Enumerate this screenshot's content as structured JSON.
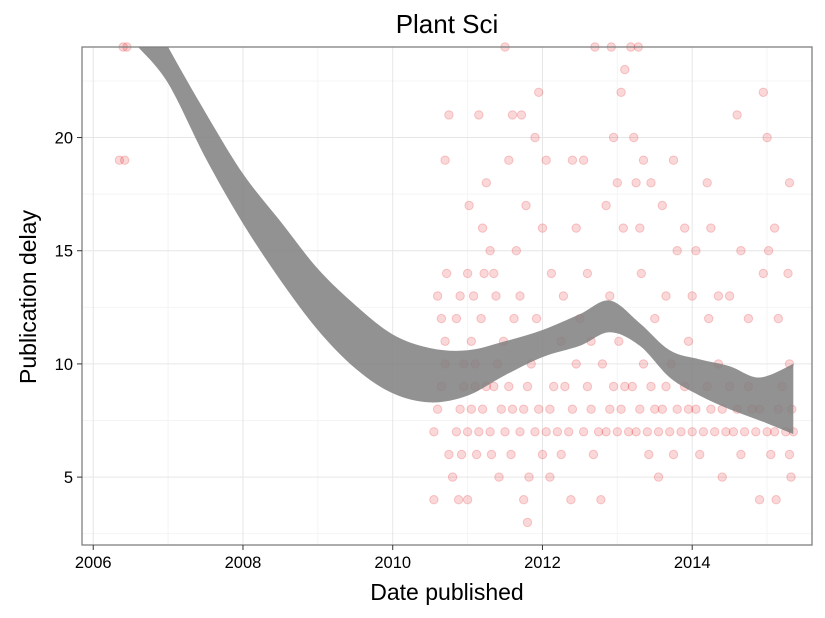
{
  "chart_data": {
    "type": "scatter",
    "title": "Plant Sci",
    "xlabel": "Date published",
    "ylabel": "Publication delay",
    "x_ticks": [
      "2006",
      "2008",
      "2010",
      "2012",
      "2014"
    ],
    "y_ticks": [
      "5",
      "10",
      "15",
      "20"
    ],
    "x_tick_values": [
      2006,
      2008,
      2010,
      2012,
      2014
    ],
    "y_tick_values": [
      5,
      10,
      15,
      20
    ],
    "xlim": [
      2005.85,
      2015.6
    ],
    "ylim": [
      2.0,
      24.0
    ],
    "grid": true,
    "point_color": "#e41a1c",
    "point_alpha": 0.17,
    "band_color": "#7f7f7f",
    "series": [
      {
        "kind": "points",
        "points": [
          [
            2006.35,
            19
          ],
          [
            2006.42,
            19
          ],
          [
            2006.4,
            24
          ],
          [
            2006.45,
            24
          ],
          [
            2010.55,
            7
          ],
          [
            2010.6,
            8
          ],
          [
            2010.65,
            9
          ],
          [
            2010.7,
            10
          ],
          [
            2010.6,
            13
          ],
          [
            2010.65,
            12
          ],
          [
            2010.7,
            11
          ],
          [
            2010.55,
            4
          ],
          [
            2010.75,
            6
          ],
          [
            2010.8,
            5
          ],
          [
            2010.7,
            19
          ],
          [
            2010.75,
            21
          ],
          [
            2010.72,
            14
          ],
          [
            2010.85,
            7
          ],
          [
            2010.9,
            8
          ],
          [
            2010.95,
            9
          ],
          [
            2010.85,
            12
          ],
          [
            2010.9,
            13
          ],
          [
            2010.95,
            10
          ],
          [
            2010.88,
            4
          ],
          [
            2010.92,
            6
          ],
          [
            2011.0,
            7
          ],
          [
            2011.05,
            8
          ],
          [
            2011.1,
            9
          ],
          [
            2011.0,
            14
          ],
          [
            2011.05,
            11
          ],
          [
            2011.1,
            10
          ],
          [
            2011.02,
            17
          ],
          [
            2011.08,
            13
          ],
          [
            2011.12,
            6
          ],
          [
            2011.0,
            4
          ],
          [
            2011.15,
            7
          ],
          [
            2011.2,
            8
          ],
          [
            2011.25,
            9
          ],
          [
            2011.15,
            21
          ],
          [
            2011.2,
            16
          ],
          [
            2011.25,
            18
          ],
          [
            2011.22,
            14
          ],
          [
            2011.18,
            12
          ],
          [
            2011.3,
            7
          ],
          [
            2011.35,
            9
          ],
          [
            2011.4,
            10
          ],
          [
            2011.3,
            15
          ],
          [
            2011.35,
            14
          ],
          [
            2011.38,
            13
          ],
          [
            2011.32,
            6
          ],
          [
            2011.42,
            5
          ],
          [
            2011.45,
            8
          ],
          [
            2011.48,
            11
          ],
          [
            2011.5,
            7
          ],
          [
            2011.55,
            9
          ],
          [
            2011.6,
            8
          ],
          [
            2011.55,
            19
          ],
          [
            2011.6,
            21
          ],
          [
            2011.65,
            15
          ],
          [
            2011.5,
            24
          ],
          [
            2011.62,
            12
          ],
          [
            2011.58,
            6
          ],
          [
            2011.7,
            7
          ],
          [
            2011.75,
            8
          ],
          [
            2011.8,
            9
          ],
          [
            2011.72,
            21
          ],
          [
            2011.78,
            17
          ],
          [
            2011.7,
            13
          ],
          [
            2011.75,
            4
          ],
          [
            2011.8,
            3
          ],
          [
            2011.82,
            5
          ],
          [
            2011.85,
            10
          ],
          [
            2011.9,
            7
          ],
          [
            2011.95,
            8
          ],
          [
            2012.0,
            6
          ],
          [
            2011.9,
            20
          ],
          [
            2011.95,
            22
          ],
          [
            2012.0,
            16
          ],
          [
            2011.92,
            12
          ],
          [
            2012.05,
            7
          ],
          [
            2012.1,
            8
          ],
          [
            2012.15,
            9
          ],
          [
            2012.05,
            19
          ],
          [
            2012.12,
            14
          ],
          [
            2012.1,
            5
          ],
          [
            2012.2,
            7
          ],
          [
            2012.25,
            6
          ],
          [
            2012.3,
            9
          ],
          [
            2012.25,
            11
          ],
          [
            2012.28,
            13
          ],
          [
            2012.35,
            7
          ],
          [
            2012.4,
            8
          ],
          [
            2012.45,
            10
          ],
          [
            2012.4,
            19
          ],
          [
            2012.45,
            16
          ],
          [
            2012.5,
            12
          ],
          [
            2012.38,
            4
          ],
          [
            2012.55,
            7
          ],
          [
            2012.6,
            9
          ],
          [
            2012.65,
            8
          ],
          [
            2012.55,
            19
          ],
          [
            2012.6,
            14
          ],
          [
            2012.65,
            11
          ],
          [
            2012.7,
            24
          ],
          [
            2012.68,
            6
          ],
          [
            2012.75,
            7
          ],
          [
            2012.8,
            10
          ],
          [
            2012.78,
            4
          ],
          [
            2012.85,
            7
          ],
          [
            2012.9,
            8
          ],
          [
            2012.95,
            9
          ],
          [
            2012.85,
            17
          ],
          [
            2012.9,
            13
          ],
          [
            2012.95,
            20
          ],
          [
            2012.92,
            24
          ],
          [
            2013.0,
            7
          ],
          [
            2013.05,
            8
          ],
          [
            2013.1,
            9
          ],
          [
            2013.0,
            18
          ],
          [
            2013.05,
            22
          ],
          [
            2013.1,
            23
          ],
          [
            2013.08,
            16
          ],
          [
            2013.02,
            11
          ],
          [
            2013.15,
            7
          ],
          [
            2013.2,
            9
          ],
          [
            2013.18,
            24
          ],
          [
            2013.22,
            20
          ],
          [
            2013.25,
            7
          ],
          [
            2013.3,
            8
          ],
          [
            2013.35,
            10
          ],
          [
            2013.25,
            18
          ],
          [
            2013.3,
            16
          ],
          [
            2013.35,
            19
          ],
          [
            2013.32,
            14
          ],
          [
            2013.28,
            24
          ],
          [
            2013.4,
            7
          ],
          [
            2013.45,
            9
          ],
          [
            2013.5,
            8
          ],
          [
            2013.45,
            18
          ],
          [
            2013.5,
            12
          ],
          [
            2013.42,
            6
          ],
          [
            2013.55,
            7
          ],
          [
            2013.6,
            8
          ],
          [
            2013.65,
            9
          ],
          [
            2013.6,
            17
          ],
          [
            2013.65,
            13
          ],
          [
            2013.55,
            5
          ],
          [
            2013.7,
            7
          ],
          [
            2013.75,
            6
          ],
          [
            2013.8,
            8
          ],
          [
            2013.75,
            19
          ],
          [
            2013.8,
            15
          ],
          [
            2013.72,
            10
          ],
          [
            2013.85,
            7
          ],
          [
            2013.9,
            9
          ],
          [
            2013.95,
            8
          ],
          [
            2013.9,
            16
          ],
          [
            2013.95,
            11
          ],
          [
            2014.0,
            7
          ],
          [
            2014.05,
            8
          ],
          [
            2014.1,
            6
          ],
          [
            2014.05,
            15
          ],
          [
            2014.0,
            13
          ],
          [
            2014.15,
            7
          ],
          [
            2014.2,
            9
          ],
          [
            2014.25,
            8
          ],
          [
            2014.2,
            18
          ],
          [
            2014.25,
            16
          ],
          [
            2014.22,
            12
          ],
          [
            2014.3,
            7
          ],
          [
            2014.35,
            10
          ],
          [
            2014.4,
            8
          ],
          [
            2014.35,
            13
          ],
          [
            2014.4,
            5
          ],
          [
            2014.45,
            7
          ],
          [
            2014.5,
            9
          ],
          [
            2014.5,
            13
          ],
          [
            2014.55,
            7
          ],
          [
            2014.6,
            8
          ],
          [
            2014.65,
            6
          ],
          [
            2014.6,
            21
          ],
          [
            2014.65,
            15
          ],
          [
            2014.7,
            7
          ],
          [
            2014.75,
            9
          ],
          [
            2014.8,
            8
          ],
          [
            2014.75,
            12
          ],
          [
            2014.85,
            7
          ],
          [
            2014.9,
            8
          ],
          [
            2014.95,
            14
          ],
          [
            2014.9,
            4
          ],
          [
            2014.95,
            22
          ],
          [
            2015.0,
            7
          ],
          [
            2015.0,
            20
          ],
          [
            2015.05,
            6
          ],
          [
            2015.02,
            15
          ],
          [
            2015.1,
            7
          ],
          [
            2015.15,
            8
          ],
          [
            2015.2,
            9
          ],
          [
            2015.1,
            16
          ],
          [
            2015.15,
            12
          ],
          [
            2015.12,
            4
          ],
          [
            2015.25,
            7
          ],
          [
            2015.3,
            10
          ],
          [
            2015.3,
            18
          ],
          [
            2015.28,
            14
          ],
          [
            2015.32,
            5
          ],
          [
            2015.35,
            7
          ],
          [
            2015.3,
            6
          ],
          [
            2015.33,
            8
          ]
        ]
      },
      {
        "kind": "confidence_band",
        "x": [
          2006.6,
          2007.0,
          2007.5,
          2008.0,
          2008.5,
          2009.0,
          2009.5,
          2010.0,
          2010.5,
          2011.0,
          2011.5,
          2012.0,
          2012.5,
          2012.9,
          2013.3,
          2013.7,
          2014.1,
          2014.5,
          2014.9,
          2015.35
        ],
        "upper": [
          26.5,
          24.0,
          21.1,
          18.4,
          16.3,
          14.2,
          12.6,
          11.3,
          10.7,
          10.6,
          11.0,
          11.5,
          12.2,
          12.8,
          11.8,
          10.6,
          10.2,
          9.9,
          9.4,
          10.0
        ],
        "lower": [
          24.0,
          22.4,
          19.1,
          16.2,
          13.7,
          11.5,
          9.8,
          8.7,
          8.3,
          8.6,
          9.5,
          10.3,
          10.8,
          11.4,
          10.8,
          9.4,
          8.6,
          8.0,
          7.5,
          6.9
        ]
      }
    ]
  }
}
